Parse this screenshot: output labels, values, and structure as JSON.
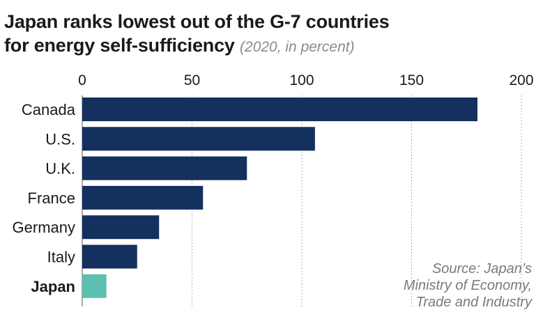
{
  "chart_data": {
    "type": "bar",
    "orientation": "horizontal",
    "title": "Japan ranks lowest out of the G-7 countries for energy self-sufficiency",
    "title_line1": "Japan ranks lowest out of the G-7 countries",
    "title_line2": "for energy self-sufficiency",
    "subtitle": "(2020, in percent)",
    "categories": [
      "Canada",
      "U.S.",
      "U.K.",
      "France",
      "Germany",
      "Italy",
      "Japan"
    ],
    "values": [
      180,
      106,
      75,
      55,
      35,
      25,
      11
    ],
    "highlight": "Japan",
    "xlim": [
      0,
      200
    ],
    "xticks": [
      0,
      50,
      100,
      150,
      200
    ],
    "axis_position": "top",
    "grid": "vertical dotted",
    "colors": {
      "bar": "#14305e",
      "highlight": "#5abfb0",
      "grid": "#9a9a9a"
    },
    "source": [
      "Source: Japan’s",
      "Ministry of Economy,",
      "Trade and Industry"
    ]
  }
}
